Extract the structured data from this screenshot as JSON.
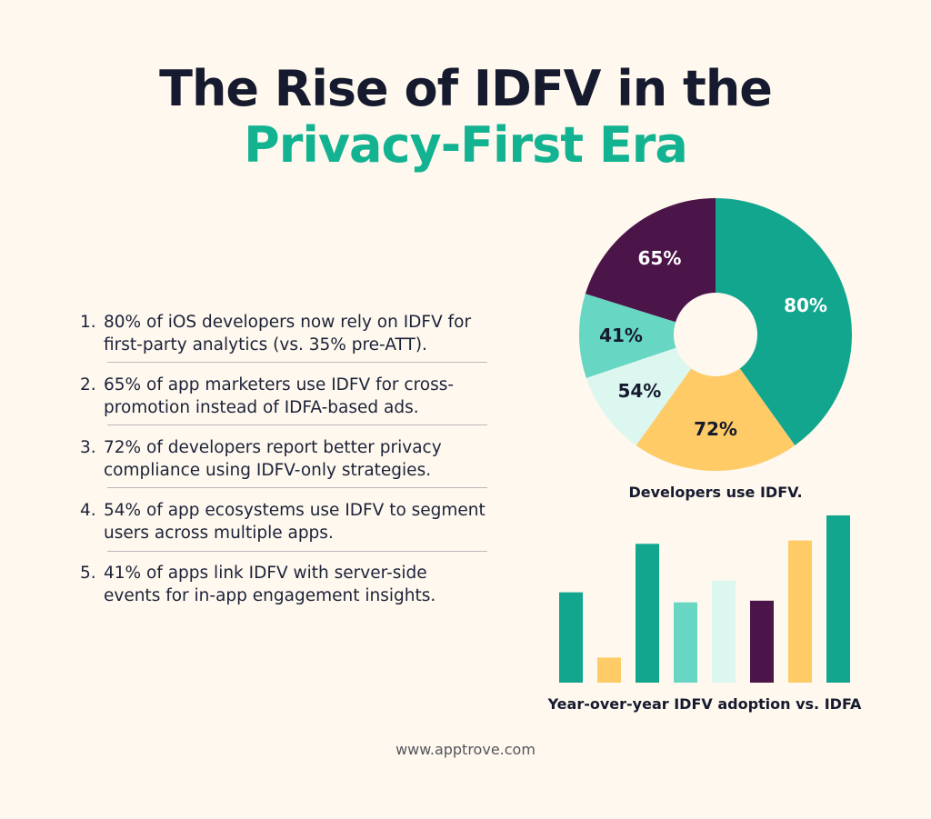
{
  "title": {
    "line1": "The Rise of IDFV in the",
    "line2": "Privacy-First Era"
  },
  "colors": {
    "teal": "#13a68e",
    "yellow": "#fecb67",
    "mint": "#67d6c2",
    "pale_mint": "#dcf6f0",
    "purple": "#4b1549",
    "dark_text": "#161a2e",
    "accent_green": "#13b391",
    "background": "#fef8ee"
  },
  "list": [
    {
      "num": "1.",
      "text": "80% of iOS developers now rely on IDFV for first-party analytics (vs. 35% pre-ATT)."
    },
    {
      "num": "2.",
      "text": "65% of app marketers use IDFV for cross-promotion instead of IDFA-based ads."
    },
    {
      "num": "3.",
      "text": "72% of developers report better privacy compliance using IDFV-only strategies."
    },
    {
      "num": "4.",
      "text": "54% of app ecosystems use IDFV to segment users across multiple apps."
    },
    {
      "num": "5.",
      "text": "41% of apps link IDFV with server-side events for in-app engagement insights."
    }
  ],
  "chart_data": [
    {
      "type": "pie",
      "donut": true,
      "title": "Developers use IDFV.",
      "slices": [
        {
          "label": "80%",
          "value": 80,
          "color": "#13a68e",
          "label_color": "#ffffff"
        },
        {
          "label": "72%",
          "value": 72,
          "color": "#fecb67",
          "label_color": "#161a2e"
        },
        {
          "label": "54%",
          "value": 54,
          "color": "#dcf6f0",
          "label_color": "#161a2e"
        },
        {
          "label": "41%",
          "value": 41,
          "color": "#67d6c2",
          "label_color": "#161a2e"
        },
        {
          "label": "65%",
          "value": 65,
          "color": "#4b1549",
          "label_color": "#ffffff"
        }
      ]
    },
    {
      "type": "bar",
      "title": "Year-over-year IDFV adoption vs. IDFA",
      "axes_visible": false,
      "grid": false,
      "values_relative": [
        54,
        15,
        83,
        48,
        61,
        49,
        85,
        100
      ],
      "colors": [
        "#13a68e",
        "#fecb67",
        "#13a68e",
        "#67d6c2",
        "#dcf6f0",
        "#4b1549",
        "#fecb67",
        "#13a68e"
      ]
    }
  ],
  "footer": "www.apptrove.com"
}
